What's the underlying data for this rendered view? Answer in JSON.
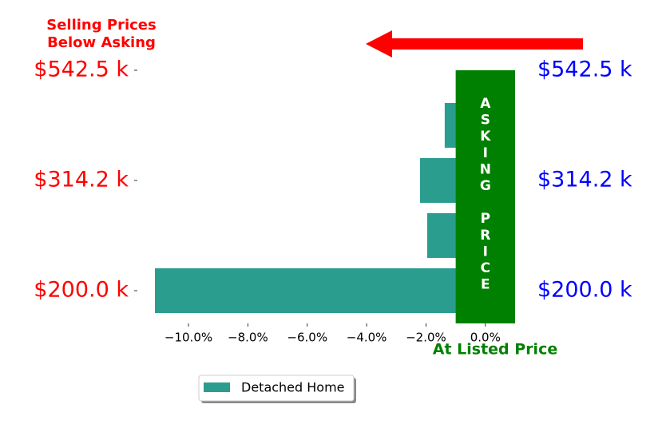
{
  "chart_data": {
    "type": "barh",
    "annotation": [
      "Selling Prices",
      "Below Asking"
    ],
    "categories": [
      "$200.0 k",
      null,
      "$314.2 k",
      null,
      "$542.5 k"
    ],
    "series": [
      {
        "name": "Detached Home",
        "color": "#2a9d8f",
        "values": [
          -11.13,
          -1.96,
          -2.2,
          -1.37,
          0
        ]
      }
    ],
    "xlim": [
      -11.13,
      1.0
    ],
    "xticks": [
      {
        "value": -10,
        "label": "−10.0%"
      },
      {
        "value": -8,
        "label": "−8.0%"
      },
      {
        "value": -6,
        "label": "−6.0%"
      },
      {
        "value": -4,
        "label": "−4.0%"
      },
      {
        "value": -2,
        "label": "−2.0%"
      },
      {
        "value": 0,
        "label": "0.0%"
      }
    ],
    "band": {
      "from": -1,
      "to": 1,
      "color": "green",
      "label": "ASKING PRICE",
      "caption": "At Listed Price"
    },
    "left_label_color": "red",
    "right_label_color": "blue"
  }
}
